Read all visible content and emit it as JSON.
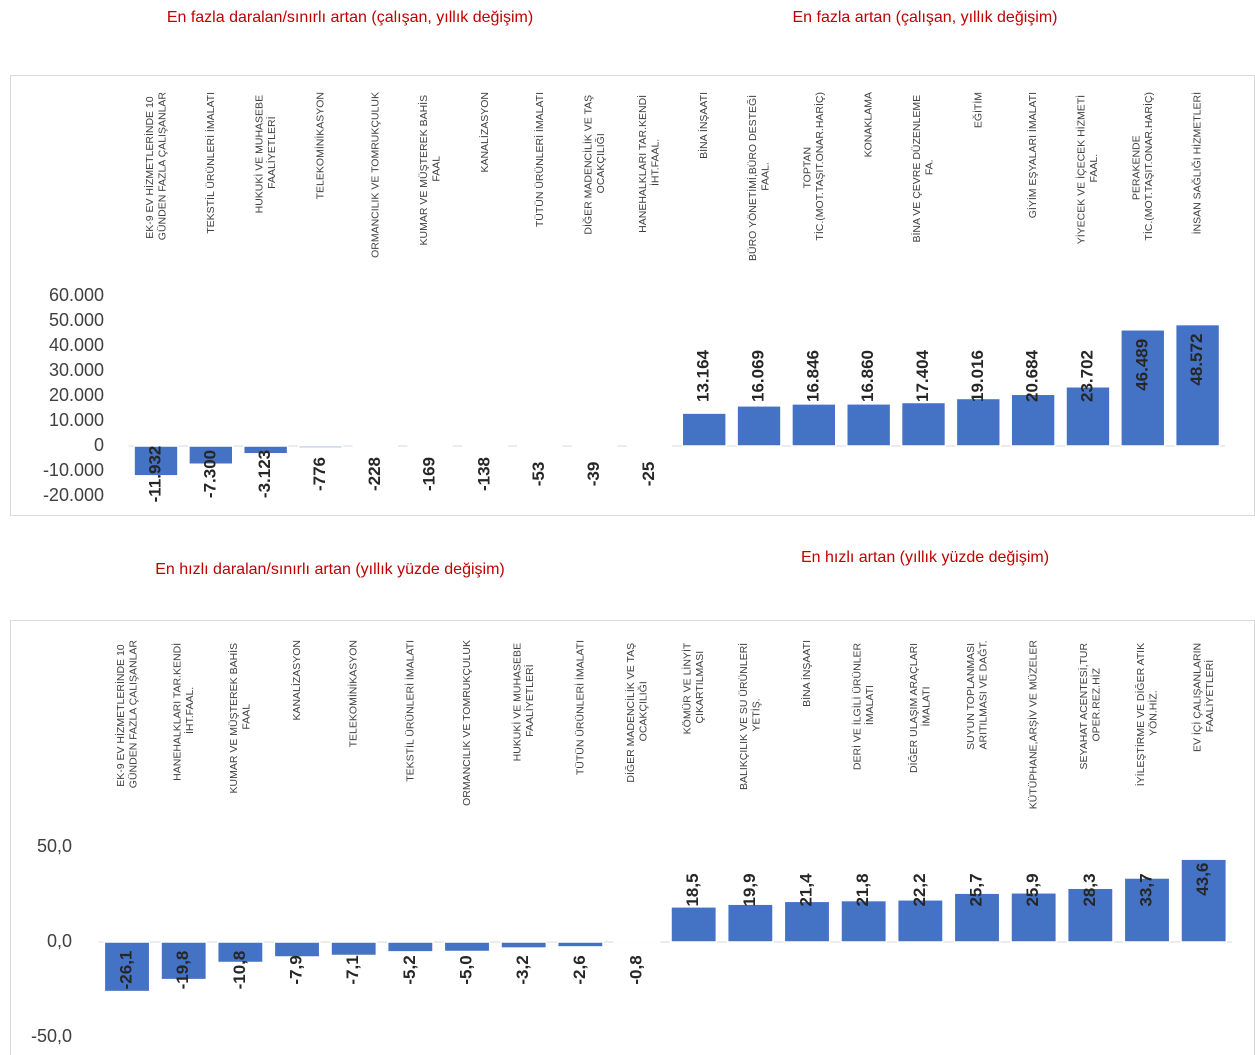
{
  "chart_data": [
    {
      "type": "bar",
      "headings": [
        "En fazla daralan/sınırlı artan (çalışan, yıllık değişim)",
        "En fazla artan (çalışan, yıllık değişim)"
      ],
      "categories": [
        "EK-9 EV HİZMETLERİNDE 10 GÜNDEN FAZLA ÇALIŞANLAR",
        "TEKSTİL ÜRÜNLERİ İMALATI",
        "HUKUKİ VE MUHASEBE FAALİYETLERİ",
        "TELEKOMİNİKASYON",
        "ORMANCILIK VE TOMRUKÇULUK",
        "KUMAR VE MÜŞTEREK BAHİS FAAL",
        "KANALİZASYON",
        "TÜTÜN ÜRÜNLERİ İMALATI",
        "DİĞER MADENCİLİK VE TAŞ OCAKÇILIĞI",
        "HANEHALKLARI TAR.KENDİ İHT.FAAL.",
        "BİNA İNŞAATI",
        "BÜRO YÖNETİMİ,BÜRO DESTEĞİ FAAL.",
        "TOPTAN TİC.(MOT.TAŞIT.ONAR.HARİÇ)",
        "KONAKLAMA",
        "BİNA VE ÇEVRE DÜZENLEME FA.",
        "EĞİTİM",
        "GİYİM EŞYALARI İMALATI",
        "YİYECEK VE İÇECEK HİZMETİ FAAL.",
        "PERAKENDE TİC.(MOT.TAŞIT.ONAR.HARİÇ)",
        "İNSAN SAĞLIĞI HİZMETLERİ"
      ],
      "values": [
        -11932,
        -7300,
        -3123,
        -776,
        -228,
        -169,
        -138,
        -53,
        -39,
        -25,
        13164,
        16069,
        16846,
        16860,
        17404,
        19016,
        20684,
        23702,
        46489,
        48572
      ],
      "value_labels": [
        "-11.932",
        "-7.300",
        "-3.123",
        "-776",
        "-228",
        "-169",
        "-138",
        "-53",
        "-39",
        "-25",
        "13.164",
        "16.069",
        "16.846",
        "16.860",
        "17.404",
        "19.016",
        "20.684",
        "23.702",
        "46.489",
        "48.572"
      ],
      "color": "#4472c4",
      "ylim": [
        -20000,
        60000
      ],
      "yticks": [
        {
          "value": -20000,
          "label": "-20.000"
        },
        {
          "value": -10000,
          "label": "-10.000"
        },
        0,
        {
          "value": 10000,
          "label": "10.000"
        },
        {
          "value": 20000,
          "label": "20.000"
        },
        {
          "value": 30000,
          "label": "30.000"
        },
        {
          "value": 40000,
          "label": "40.000"
        },
        {
          "value": 50000,
          "label": "50.000"
        },
        {
          "value": 60000,
          "label": "60.000"
        }
      ],
      "grid": false
    },
    {
      "type": "bar",
      "headings": [
        "En hızlı daralan/sınırlı artan (yıllık yüzde değişim)",
        "En hızlı artan (yıllık yüzde değişim)"
      ],
      "categories": [
        "EK-9 EV HİZMETLERİNDE 10 GÜNDEN FAZLA ÇALIŞANLAR",
        "HANEHALKLARI TAR.KENDİ İHT.FAAL.",
        "KUMAR VE MÜŞTEREK BAHİS FAAL",
        "KANALİZASYON",
        "TELEKOMİNİKASYON",
        "TEKSTİL ÜRÜNLERİ İMALATI",
        "ORMANCILIK VE TOMRUKÇULUK",
        "HUKUKİ VE MUHASEBE FAALİYETLERİ",
        "TÜTÜN ÜRÜNLERİ İMALATI",
        "DİĞER MADENCİLİK VE TAŞ OCAKÇILIĞI",
        "KÖMÜR VE LİNYİT ÇIKARTILMASI",
        "BALIKÇILIK VE SU ÜRÜNLERİ YETİŞ.",
        "BİNA İNŞAATI",
        "DERİ VE İLGİLİ ÜRÜNLER İMALATI",
        "DİĞER ULAŞIM ARAÇLARI İMALATI",
        "SUYUN TOPLANMASI ARITILMASI VE DAĞT.",
        "KÜTÜPHANE,ARŞİV VE MÜZELER",
        "SEYAHAT ACENTESİ,TUR OPER.REZ.HİZ",
        "İYİLEŞTİRME VE DİĞER ATIK YÖN.HİZ.",
        "EV İÇİ ÇALIŞANLARIN FAALİYETLERİ"
      ],
      "values": [
        -26.1,
        -19.8,
        -10.8,
        -7.9,
        -7.1,
        -5.2,
        -5.0,
        -3.2,
        -2.6,
        -0.8,
        18.5,
        19.9,
        21.4,
        21.8,
        22.2,
        25.7,
        25.9,
        28.3,
        33.7,
        43.6
      ],
      "value_labels": [
        "-26,1",
        "-19,8",
        "-10,8",
        "-7,9",
        "-7,1",
        "-5,2",
        "-5,0",
        "-3,2",
        "-2,6",
        "-0,8",
        "18,5",
        "19,9",
        "21,4",
        "21,8",
        "22,2",
        "25,7",
        "25,9",
        "28,3",
        "33,7",
        "43,6"
      ],
      "color": "#4472c4",
      "ylim": [
        -50,
        50
      ],
      "yticks": [
        {
          "value": -50,
          "label": "-50,0"
        },
        {
          "value": 0,
          "label": "0,0"
        },
        {
          "value": 50,
          "label": "50,0"
        }
      ],
      "grid": false
    }
  ]
}
